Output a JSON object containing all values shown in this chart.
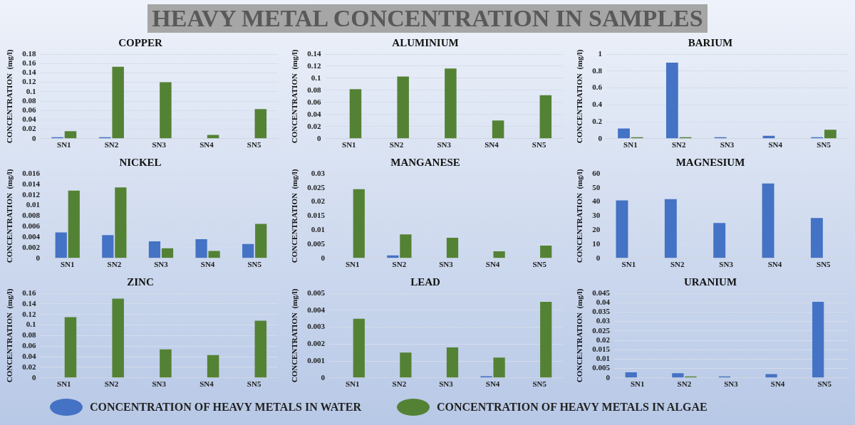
{
  "chart_data": [
    {
      "type": "other",
      "title": "HEAVY METAL CONCENTRATION IN SAMPLES"
    },
    {
      "type": "bar",
      "title": "COPPER",
      "ylabel": "CONCENTRATION  (mg/l)",
      "categories": [
        "SN1",
        "SN2",
        "SN3",
        "SN4",
        "SN5"
      ],
      "legend": "bottom",
      "grid": "y",
      "ylim": [
        0,
        0.18
      ],
      "yticks": [
        0,
        0.02,
        0.04,
        0.06,
        0.08,
        0.1,
        0.12,
        0.14,
        0.16,
        0.18
      ],
      "series": [
        {
          "name": "CONCENTRATION OF HEAVY METALS IN WATER",
          "color": "#4472c4",
          "values": [
            0.001,
            0.001,
            null,
            null,
            null
          ]
        },
        {
          "name": "CONCENTRATION OF HEAVY METALS IN ALGAE",
          "color": "#548235",
          "values": [
            0.016,
            0.153,
            0.12,
            0.008,
            0.063
          ]
        }
      ]
    },
    {
      "type": "bar",
      "title": "ALUMINIUM",
      "ylabel": "CONCENTRATION  (mg/l)",
      "categories": [
        "SN1",
        "SN2",
        "SN3",
        "SN4",
        "SN5"
      ],
      "grid": "y",
      "ylim": [
        0,
        0.14
      ],
      "yticks": [
        0,
        0.02,
        0.04,
        0.06,
        0.08,
        0.1,
        0.12,
        0.14
      ],
      "series": [
        {
          "color": "#4472c4",
          "values": [
            null,
            null,
            null,
            null,
            null
          ]
        },
        {
          "color": "#548235",
          "values": [
            0.082,
            0.103,
            0.116,
            0.03,
            0.072
          ]
        }
      ]
    },
    {
      "type": "bar",
      "title": "BARIUM",
      "ylabel": "CONCENTRATION  (mg/l)",
      "categories": [
        "SN1",
        "SN2",
        "SN3",
        "SN4",
        "SN5"
      ],
      "grid": "y",
      "ylim": [
        0,
        1
      ],
      "yticks": [
        0,
        0.2,
        0.4,
        0.6,
        0.8,
        1
      ],
      "series": [
        {
          "color": "#4472c4",
          "values": [
            0.12,
            0.9,
            0.005,
            0.035,
            0.015
          ]
        },
        {
          "color": "#548235",
          "values": [
            0.005,
            0.005,
            null,
            null,
            0.105
          ]
        }
      ]
    },
    {
      "type": "bar",
      "title": "NICKEL",
      "ylabel": "CONCENTRATION  (mg/l)",
      "categories": [
        "SN1",
        "SN2",
        "SN3",
        "SN4",
        "SN5"
      ],
      "grid": "y",
      "ylim": [
        0,
        0.016
      ],
      "yticks": [
        0,
        0.002,
        0.004,
        0.006,
        0.008,
        0.01,
        0.012,
        0.014,
        0.016
      ],
      "series": [
        {
          "color": "#4472c4",
          "values": [
            0.0049,
            0.0044,
            0.0032,
            0.0036,
            0.0027
          ]
        },
        {
          "color": "#548235",
          "values": [
            0.0128,
            0.0134,
            0.0019,
            0.0014,
            0.0065
          ]
        }
      ]
    },
    {
      "type": "bar",
      "title": "MANGANESE",
      "ylabel": "CONCENTRATION  (mg/l)",
      "categories": [
        "SN1",
        "SN2",
        "SN3",
        "SN4",
        "SN5"
      ],
      "grid": "y",
      "ylim": [
        0,
        0.03
      ],
      "yticks": [
        0,
        0.005,
        0.01,
        0.015,
        0.02,
        0.025,
        0.03
      ],
      "series": [
        {
          "color": "#4472c4",
          "values": [
            null,
            0.001,
            null,
            null,
            null
          ]
        },
        {
          "color": "#548235",
          "values": [
            0.0245,
            0.0085,
            0.0073,
            0.0025,
            0.0045
          ]
        }
      ]
    },
    {
      "type": "bar",
      "title": "MAGNESIUM",
      "ylabel": "CONCENTRATION  (mg/l)",
      "categories": [
        "SN1",
        "SN2",
        "SN3",
        "SN4",
        "SN5"
      ],
      "grid": "y",
      "ylim": [
        0,
        60
      ],
      "yticks": [
        0,
        10,
        20,
        30,
        40,
        50,
        60
      ],
      "series": [
        {
          "color": "#4472c4",
          "values": [
            41,
            42,
            25,
            53,
            28.5
          ]
        },
        {
          "color": "#548235",
          "values": [
            null,
            null,
            null,
            null,
            null
          ]
        }
      ]
    },
    {
      "type": "bar",
      "title": "ZINC",
      "ylabel": "CONCENTRATION  (mg/l)",
      "categories": [
        "SN1",
        "SN2",
        "SN3",
        "SN4",
        "SN5"
      ],
      "grid": "y",
      "ylim": [
        0,
        0.16
      ],
      "yticks": [
        0,
        0.02,
        0.04,
        0.06,
        0.08,
        0.1,
        0.12,
        0.14,
        0.16
      ],
      "series": [
        {
          "color": "#4472c4",
          "values": [
            null,
            null,
            null,
            null,
            null
          ]
        },
        {
          "color": "#548235",
          "values": [
            0.115,
            0.15,
            0.054,
            0.043,
            0.108
          ]
        }
      ]
    },
    {
      "type": "bar",
      "title": "LEAD",
      "ylabel": "CONCENTRATION  (mg/l)",
      "categories": [
        "SN1",
        "SN2",
        "SN3",
        "SN4",
        "SN5"
      ],
      "grid": "y",
      "ylim": [
        0,
        0.005
      ],
      "yticks": [
        0,
        0.001,
        0.002,
        0.003,
        0.004,
        0.005
      ],
      "series": [
        {
          "color": "#4472c4",
          "values": [
            null,
            null,
            null,
            0.0001,
            null
          ]
        },
        {
          "color": "#548235",
          "values": [
            0.0035,
            0.0015,
            0.0018,
            0.0012,
            0.0045
          ]
        }
      ]
    },
    {
      "type": "bar",
      "title": "URANIUM",
      "ylabel": "CONCENTRATION  (mg/l)",
      "categories": [
        "SN1",
        "SN2",
        "SN3",
        "SN4",
        "SN5"
      ],
      "grid": "y",
      "ylim": [
        0,
        0.045
      ],
      "yticks": [
        0,
        0.005,
        0.01,
        0.015,
        0.02,
        0.025,
        0.03,
        0.035,
        0.04,
        0.045
      ],
      "series": [
        {
          "color": "#4472c4",
          "values": [
            0.003,
            0.0025,
            0.0008,
            0.002,
            0.0405
          ]
        },
        {
          "color": "#548235",
          "values": [
            null,
            0.0003,
            null,
            null,
            null
          ]
        }
      ]
    }
  ]
}
